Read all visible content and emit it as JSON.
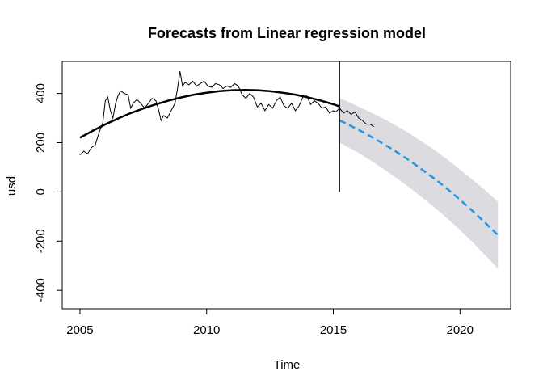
{
  "chart_data": {
    "type": "line",
    "title": "Forecasts from Linear regression model",
    "xlabel": "Time",
    "ylabel": "usd",
    "xlim": [
      2004.3,
      2022.0
    ],
    "ylim": [
      -475,
      530
    ],
    "x_ticks": [
      2005,
      2010,
      2015,
      2020
    ],
    "y_ticks": [
      -400,
      -200,
      0,
      200,
      400
    ],
    "x_tick_labels": [
      "2005",
      "2010",
      "2015",
      "2020"
    ],
    "y_tick_labels": [
      "-400",
      "-200",
      "0",
      "200",
      "400"
    ],
    "forecast_origin": 2015.25,
    "colors": {
      "observed": "#000000",
      "fitted": "#000000",
      "forecast": "#2297e6",
      "interval": "#dbdbe0"
    },
    "series": [
      {
        "role": "observed",
        "x": [
          2005.0,
          2005.15,
          2005.3,
          2005.45,
          2005.6,
          2005.75,
          2005.9,
          2006.0,
          2006.1,
          2006.2,
          2006.3,
          2006.4,
          2006.5,
          2006.6,
          2006.75,
          2006.9,
          2007.0,
          2007.1,
          2007.25,
          2007.4,
          2007.55,
          2007.7,
          2007.85,
          2008.0,
          2008.1,
          2008.2,
          2008.3,
          2008.45,
          2008.6,
          2008.75,
          2008.85,
          2008.95,
          2009.05,
          2009.15,
          2009.3,
          2009.45,
          2009.6,
          2009.75,
          2009.9,
          2010.05,
          2010.2,
          2010.35,
          2010.5,
          2010.65,
          2010.8,
          2010.95,
          2011.1,
          2011.25,
          2011.4,
          2011.55,
          2011.7,
          2011.85,
          2012.0,
          2012.15,
          2012.3,
          2012.45,
          2012.6,
          2012.75,
          2012.9,
          2013.05,
          2013.2,
          2013.35,
          2013.5,
          2013.65,
          2013.8,
          2013.95,
          2014.1,
          2014.25,
          2014.4,
          2014.55,
          2014.7,
          2014.85,
          2015.0,
          2015.1,
          2015.25,
          2015.4,
          2015.55,
          2015.7,
          2015.85,
          2016.0,
          2016.15,
          2016.3,
          2016.45,
          2016.6
        ],
        "y": [
          150,
          165,
          155,
          180,
          190,
          240,
          280,
          370,
          385,
          330,
          300,
          355,
          390,
          410,
          400,
          395,
          340,
          360,
          375,
          360,
          340,
          360,
          380,
          370,
          335,
          290,
          310,
          300,
          330,
          360,
          420,
          490,
          430,
          445,
          435,
          450,
          430,
          440,
          450,
          430,
          425,
          440,
          435,
          420,
          430,
          425,
          440,
          430,
          395,
          380,
          400,
          385,
          345,
          360,
          330,
          355,
          340,
          370,
          385,
          350,
          340,
          360,
          330,
          350,
          385,
          390,
          355,
          370,
          360,
          340,
          345,
          320,
          330,
          325,
          340,
          320,
          330,
          315,
          325,
          300,
          290,
          275,
          275,
          265
        ]
      },
      {
        "role": "fitted",
        "x": [
          2005.0,
          2005.5,
          2006.0,
          2006.5,
          2007.0,
          2007.5,
          2008.0,
          2008.5,
          2009.0,
          2009.5,
          2010.0,
          2010.5,
          2011.0,
          2011.5,
          2012.0,
          2012.5,
          2013.0,
          2013.5,
          2014.0,
          2014.5,
          2015.0,
          2015.25
        ],
        "y": [
          220,
          248,
          274,
          298,
          320,
          339,
          356,
          371,
          384,
          395,
          403,
          409,
          413,
          414,
          413,
          409,
          403,
          395,
          384,
          371,
          356,
          347
        ]
      },
      {
        "role": "forecast-mean",
        "x": [
          2015.25,
          2015.5,
          2016.0,
          2016.5,
          2017.0,
          2017.5,
          2018.0,
          2018.5,
          2019.0,
          2019.5,
          2020.0,
          2020.5,
          2021.0,
          2021.5
        ],
        "y": [
          290,
          278,
          252,
          224,
          194,
          162,
          128,
          91,
          53,
          12,
          -32,
          -78,
          -126,
          -176
        ]
      }
    ],
    "interval": {
      "x": [
        2015.25,
        2015.5,
        2016.0,
        2016.5,
        2017.0,
        2017.5,
        2018.0,
        2018.5,
        2019.0,
        2019.5,
        2020.0,
        2020.5,
        2021.0,
        2021.5
      ],
      "lower": [
        200,
        186,
        158,
        126,
        92,
        56,
        18,
        -22,
        -64,
        -108,
        -155,
        -205,
        -258,
        -312
      ],
      "upper": [
        380,
        370,
        346,
        322,
        296,
        268,
        238,
        204,
        170,
        132,
        91,
        49,
        6,
        -40
      ]
    }
  }
}
